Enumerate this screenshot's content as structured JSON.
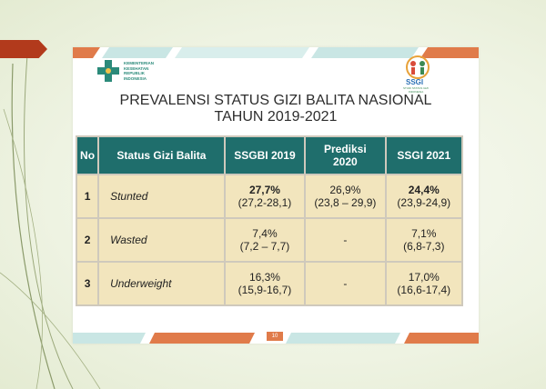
{
  "header": {
    "kemenkes_lines": [
      "KEMENTERIAN",
      "KESEHATAN",
      "REPUBLIK",
      "INDONESIA"
    ],
    "ssgi_logo_text": "SSGI",
    "ssgi_subtext": "STUDI STATUS GIZI INDONESIA"
  },
  "title": {
    "line1": "PREVALENSI STATUS GIZI BALITA NASIONAL",
    "line2": "TAHUN 2019-2021"
  },
  "table": {
    "headers": {
      "no": "No",
      "status": "Status Gizi Balita",
      "ssgbi": "SSGBI 2019",
      "prediksi_1": "Prediksi",
      "prediksi_2": "2020",
      "ssgi": "SSGI 2021"
    },
    "rows": [
      {
        "no": "1",
        "status": "Stunted",
        "ssgbi_val": "27,7%",
        "ssgbi_ci": "(27,2-28,1)",
        "pred_val": "26,9%",
        "pred_ci": "(23,8 – 29,9)",
        "ssgi_val": "24,4%",
        "ssgi_ci": "(23,9-24,9)"
      },
      {
        "no": "2",
        "status": "Wasted",
        "ssgbi_val": "7,4%",
        "ssgbi_ci": "(7,2 – 7,7)",
        "pred_val": "-",
        "pred_ci": "",
        "ssgi_val": "7,1%",
        "ssgi_ci": "(6,8-7,3)"
      },
      {
        "no": "3",
        "status": "Underweight",
        "ssgbi_val": "16,3%",
        "ssgbi_ci": "(15,9-16,7)",
        "pred_val": "-",
        "pred_ci": "",
        "ssgi_val": "17,0%",
        "ssgi_ci": "(16,6-17,4)"
      }
    ]
  },
  "footer": {
    "page_number": "10"
  },
  "colors": {
    "header_bg": "#1f6e6c",
    "cell_bg": "#f2e5bd",
    "accent_red": "#b23a1c",
    "stripe_orange": "#e07b4a",
    "stripe_teal": "#7fc4c1"
  }
}
